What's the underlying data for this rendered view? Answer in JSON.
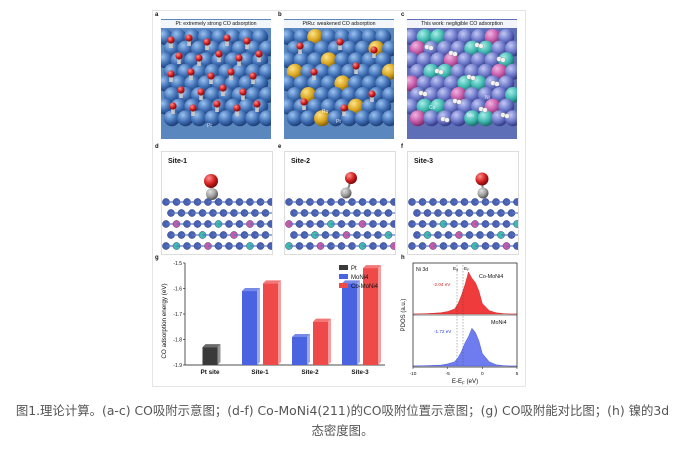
{
  "panels_top": [
    {
      "letter": "a",
      "title": "Pt: extremely strong CO adsorption"
    },
    {
      "letter": "b",
      "title": "PtRu: weakened CO adsorption"
    },
    {
      "letter": "c",
      "title": "This work: negligible CO adsorption"
    }
  ],
  "sphere_labels": {
    "pt_a": "Pt",
    "ru": "Ru",
    "pt_b": "Pt",
    "co": "Co",
    "mo": "Mo",
    "ni": "Ni"
  },
  "panels_mid": [
    {
      "letter": "d",
      "site": "Site-1"
    },
    {
      "letter": "e",
      "site": "Site-2"
    },
    {
      "letter": "f",
      "site": "Site-3"
    }
  ],
  "colors": {
    "pt_blue": "#3f6fb5",
    "ru_gold": "#d8a51e",
    "co_cyan": "#3fb8b0",
    "mo_violet": "#6a76c8",
    "ni_pink": "#c55aa8",
    "oxygen": "#d21f1f",
    "carbon": "#6b6b6b",
    "bar_pt": "#3a3a3a",
    "bar_moni4": "#4a63e0",
    "bar_como": "#ef4a4a"
  },
  "chart_g": {
    "letter": "g",
    "ylabel": "CO adsorption energy (eV)",
    "legend": [
      "Pt",
      "MoNi4",
      "Co-MoNi4"
    ]
  },
  "chart_h": {
    "letter": "h",
    "tag": "Ni 3d",
    "ylabel": "PDOS (a.u.)",
    "xlabel": "E-E",
    "xlabel_sub": "F",
    "xlabel_unit": " (eV)",
    "upper_label": "Co-MoNi4",
    "lower_label": "MoNi4",
    "upper_dband": "-2.04 eV",
    "lower_dband": "-1.72 eV",
    "marker_ed": "E",
    "marker_ed_sub": "d",
    "marker_ef": "E",
    "marker_ef_sub": "F"
  },
  "chart_data": [
    {
      "type": "bar",
      "categories": [
        "Pt site",
        "Site-1",
        "Site-2",
        "Site-3"
      ],
      "series": [
        {
          "name": "Pt",
          "values": [
            -1.83,
            null,
            null,
            null
          ]
        },
        {
          "name": "MoNi4",
          "values": [
            null,
            -1.61,
            -1.79,
            -1.58
          ]
        },
        {
          "name": "Co-MoNi4",
          "values": [
            null,
            -1.58,
            -1.73,
            -1.52
          ]
        }
      ],
      "ylabel": "CO adsorption energy (eV)",
      "ylim": [
        -1.9,
        -1.5
      ],
      "yticks": [
        -1.9,
        -1.8,
        -1.7,
        -1.6,
        -1.5
      ],
      "legend_position": "top-right"
    },
    {
      "type": "area",
      "xlabel": "E-EF (eV)",
      "ylabel": "PDOS (a.u.)",
      "xlim": [
        -10,
        5
      ],
      "xticks": [
        -10,
        -5,
        0,
        5
      ],
      "series": [
        {
          "name": "Co-MoNi4",
          "d_band_center": -2.04,
          "x": [
            -10,
            -8,
            -6,
            -5,
            -4,
            -3.5,
            -3,
            -2.5,
            -2,
            -1.5,
            -1,
            -0.5,
            0,
            1,
            2,
            3,
            4,
            5
          ],
          "y": [
            0,
            0.01,
            0.03,
            0.06,
            0.12,
            0.25,
            0.45,
            0.7,
            1.0,
            0.85,
            0.75,
            0.55,
            0.25,
            0.08,
            0.03,
            0.01,
            0,
            0
          ]
        },
        {
          "name": "MoNi4",
          "d_band_center": -1.72,
          "x": [
            -10,
            -8,
            -6,
            -5,
            -4,
            -3.5,
            -3,
            -2.5,
            -2,
            -1.5,
            -1,
            -0.5,
            0,
            1,
            2,
            3,
            4,
            5
          ],
          "y": [
            0,
            0.01,
            0.02,
            0.05,
            0.1,
            0.2,
            0.35,
            0.55,
            0.7,
            0.9,
            0.8,
            0.6,
            0.3,
            0.1,
            0.03,
            0.01,
            0,
            0
          ]
        }
      ]
    }
  ],
  "caption": "图1.理论计算。(a-c) CO吸附示意图；(d-f) Co-MoNi4(211)的CO吸附位置示意图；(g) CO吸附能对比图；(h) 镍的3d态密度图。"
}
